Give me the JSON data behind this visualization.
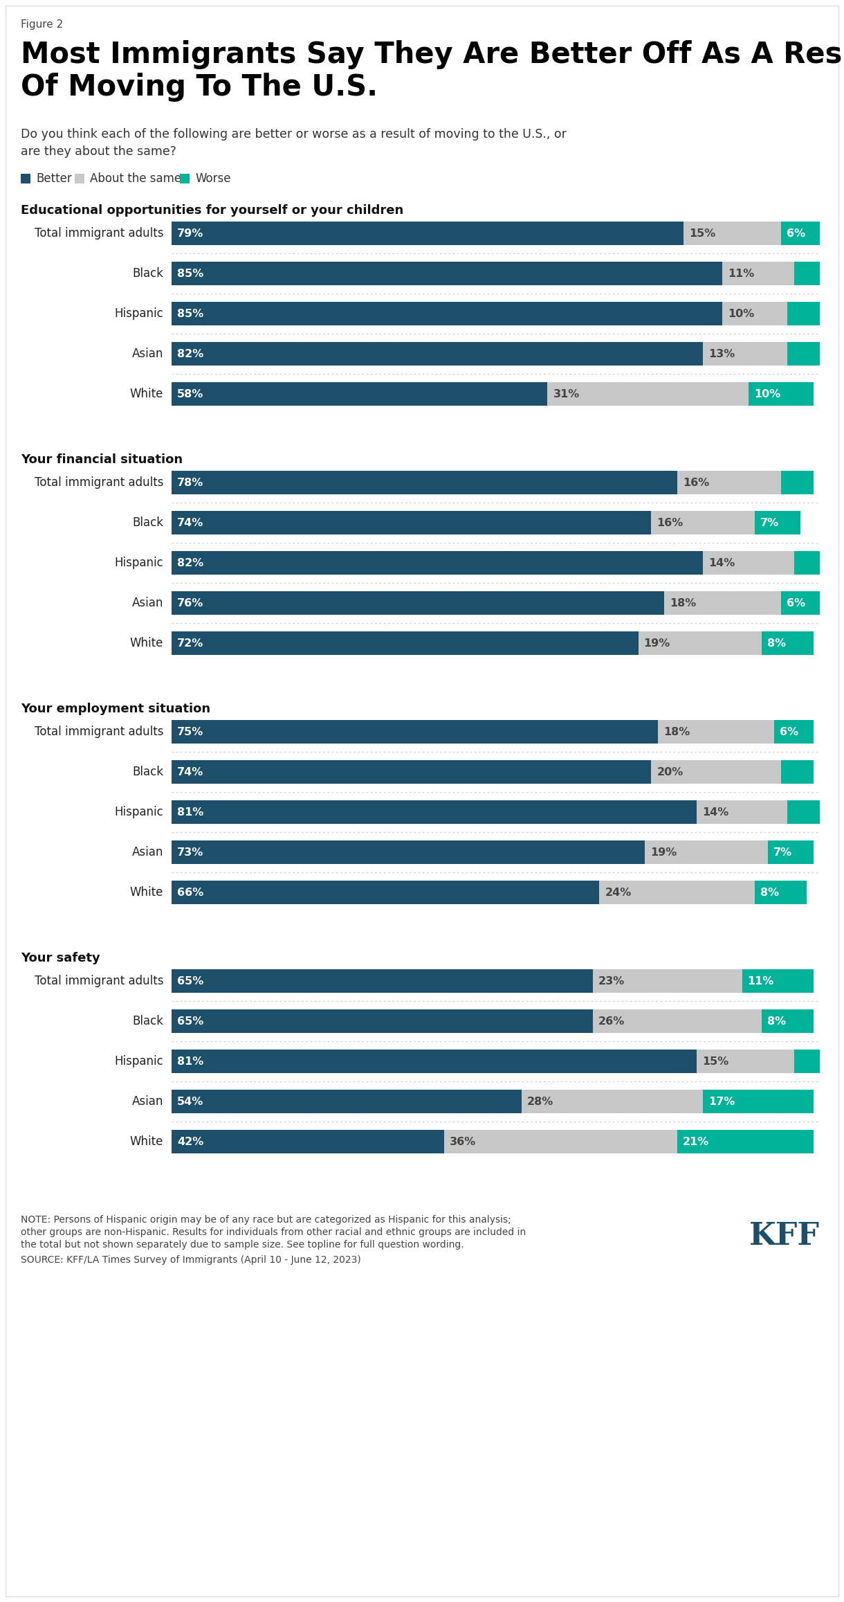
{
  "figure_label": "Figure 2",
  "title": "Most Immigrants Say They Are Better Off As A Result\nOf Moving To The U.S.",
  "subtitle": "Do you think each of the following are better or worse as a result of moving to the U.S., or\nare they about the same?",
  "color_better": "#1b4f6a",
  "color_same": "#c8c8c8",
  "color_worse": "#00b398",
  "legend_labels": [
    "Better",
    "About the same",
    "Worse"
  ],
  "sections": [
    {
      "title": "Educational opportunities for yourself or your children",
      "rows": [
        {
          "label": "Total immigrant adults",
          "better": 79,
          "same": 15,
          "worse": 6
        },
        {
          "label": "Black",
          "better": 85,
          "same": 11,
          "worse": 4
        },
        {
          "label": "Hispanic",
          "better": 85,
          "same": 10,
          "worse": 5
        },
        {
          "label": "Asian",
          "better": 82,
          "same": 13,
          "worse": 5
        },
        {
          "label": "White",
          "better": 58,
          "same": 31,
          "worse": 10
        }
      ]
    },
    {
      "title": "Your financial situation",
      "rows": [
        {
          "label": "Total immigrant adults",
          "better": 78,
          "same": 16,
          "worse": 5
        },
        {
          "label": "Black",
          "better": 74,
          "same": 16,
          "worse": 7
        },
        {
          "label": "Hispanic",
          "better": 82,
          "same": 14,
          "worse": 4
        },
        {
          "label": "Asian",
          "better": 76,
          "same": 18,
          "worse": 6
        },
        {
          "label": "White",
          "better": 72,
          "same": 19,
          "worse": 8
        }
      ]
    },
    {
      "title": "Your employment situation",
      "rows": [
        {
          "label": "Total immigrant adults",
          "better": 75,
          "same": 18,
          "worse": 6
        },
        {
          "label": "Black",
          "better": 74,
          "same": 20,
          "worse": 5
        },
        {
          "label": "Hispanic",
          "better": 81,
          "same": 14,
          "worse": 5
        },
        {
          "label": "Asian",
          "better": 73,
          "same": 19,
          "worse": 7
        },
        {
          "label": "White",
          "better": 66,
          "same": 24,
          "worse": 8
        }
      ]
    },
    {
      "title": "Your safety",
      "rows": [
        {
          "label": "Total immigrant adults",
          "better": 65,
          "same": 23,
          "worse": 11
        },
        {
          "label": "Black",
          "better": 65,
          "same": 26,
          "worse": 8
        },
        {
          "label": "Hispanic",
          "better": 81,
          "same": 15,
          "worse": 4
        },
        {
          "label": "Asian",
          "better": 54,
          "same": 28,
          "worse": 17
        },
        {
          "label": "White",
          "better": 42,
          "same": 36,
          "worse": 21
        }
      ]
    }
  ],
  "note1": "NOTE: Persons of Hispanic origin may be of any race but are categorized as Hispanic for this analysis;",
  "note2": "other groups are non-Hispanic. Results for individuals from other racial and ethnic groups are included in",
  "note3": "the total but not shown separately due to sample size. See topline for full question wording.",
  "source": "SOURCE: KFF/LA Times Survey of Immigrants (April 10 - June 12, 2023)",
  "background_color": "#ffffff"
}
